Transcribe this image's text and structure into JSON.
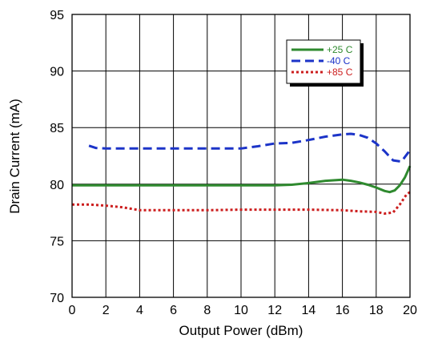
{
  "chart_data": {
    "type": "line",
    "xlabel": "Output Power (dBm)",
    "ylabel": "Drain Current (mA)",
    "xlim": [
      0,
      20
    ],
    "ylim": [
      70,
      95
    ],
    "xticks": [
      "0",
      "2",
      "4",
      "6",
      "8",
      "10",
      "12",
      "14",
      "16",
      "18",
      "20"
    ],
    "yticks": [
      "70",
      "75",
      "80",
      "85",
      "90",
      "95"
    ],
    "grid": true,
    "legend_position": "top-right",
    "series": [
      {
        "name": "+25 C",
        "color": "#2f8a2f",
        "style": "solid",
        "x": [
          0,
          2,
          4,
          6,
          8,
          10,
          12,
          13,
          14,
          15,
          16,
          16.5,
          17,
          17.5,
          18,
          18.5,
          18.8,
          19.1,
          19.4,
          19.7,
          20
        ],
        "y": [
          79.9,
          79.9,
          79.9,
          79.9,
          79.9,
          79.9,
          79.9,
          79.95,
          80.1,
          80.3,
          80.4,
          80.3,
          80.15,
          79.95,
          79.7,
          79.4,
          79.3,
          79.45,
          79.9,
          80.6,
          81.6
        ]
      },
      {
        "name": "-40 C",
        "color": "#1c34c8",
        "style": "dashed",
        "x": [
          1,
          1.4,
          2,
          4,
          6,
          8,
          10,
          11,
          12,
          13,
          14,
          15,
          16,
          16.5,
          17,
          17.5,
          18,
          18.5,
          19,
          19.5,
          20
        ],
        "y": [
          83.4,
          83.2,
          83.15,
          83.15,
          83.15,
          83.15,
          83.15,
          83.35,
          83.6,
          83.65,
          83.9,
          84.2,
          84.4,
          84.45,
          84.35,
          84.1,
          83.6,
          82.9,
          82.1,
          82.0,
          83.0
        ]
      },
      {
        "name": "+85 C",
        "color": "#cc1e1e",
        "style": "dotted",
        "x": [
          0,
          1,
          2,
          3,
          4,
          6,
          8,
          10,
          12,
          14,
          16,
          17,
          18,
          18.5,
          19,
          19.4,
          19.8,
          20
        ],
        "y": [
          78.2,
          78.2,
          78.1,
          77.95,
          77.7,
          77.7,
          77.7,
          77.75,
          77.75,
          77.75,
          77.7,
          77.6,
          77.55,
          77.4,
          77.5,
          78.2,
          79.1,
          79.3
        ]
      }
    ]
  }
}
